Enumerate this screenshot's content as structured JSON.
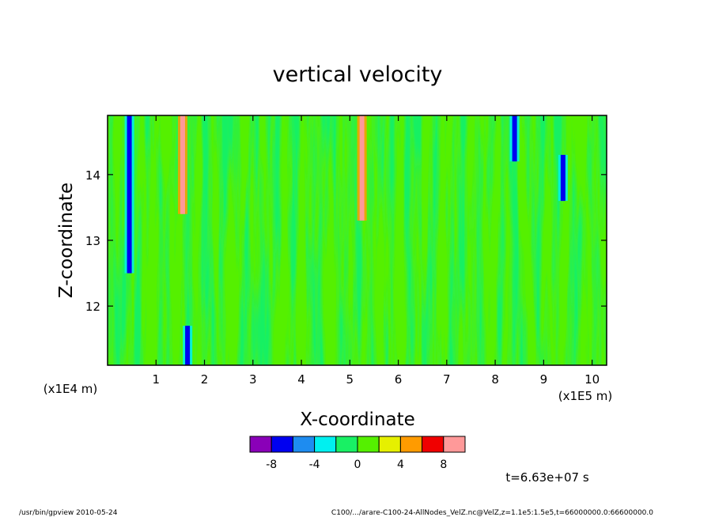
{
  "chart_data": {
    "type": "heatmap",
    "title": "vertical velocity",
    "xlabel": "X-coordinate",
    "ylabel": "Z-coordinate",
    "x_unit_label": "(x1E5 m)",
    "y_unit_label": "(x1E4 m)",
    "xlim": [
      0.0,
      10.3
    ],
    "ylim": [
      11.1,
      14.9
    ],
    "x_ticks": [
      1,
      2,
      3,
      4,
      5,
      6,
      7,
      8,
      9,
      10
    ],
    "y_ticks": [
      12,
      13,
      14
    ],
    "colorbar": {
      "levels": [
        -10,
        -8,
        -6,
        -4,
        -2,
        0,
        2,
        4,
        6,
        8,
        10
      ],
      "colors": [
        "#8a00b8",
        "#0000f0",
        "#1e8cf0",
        "#00f0f0",
        "#19f064",
        "#55f000",
        "#e6f000",
        "#ff9b00",
        "#f00000",
        "#ff9999"
      ],
      "tick_labels": [
        "-8",
        "-4",
        "0",
        "4",
        "8"
      ],
      "tick_values": [
        -8,
        -4,
        0,
        4,
        8
      ]
    },
    "dominant_value": 0,
    "features": [
      {
        "x": 0.45,
        "z_range": [
          12.5,
          14.9
        ],
        "value": -8
      },
      {
        "x": 1.55,
        "z_range": [
          13.4,
          14.9
        ],
        "value": 8
      },
      {
        "x": 1.65,
        "z_range": [
          11.1,
          11.7
        ],
        "value": -8
      },
      {
        "x": 5.25,
        "z_range": [
          13.3,
          14.9
        ],
        "value": 8
      },
      {
        "x": 8.4,
        "z_range": [
          14.2,
          14.9
        ],
        "value": -8
      },
      {
        "x": 9.4,
        "z_range": [
          13.6,
          14.3
        ],
        "value": -8
      }
    ],
    "annotation": "t=6.63e+07 s"
  },
  "footer": {
    "left": "/usr/bin/gpview   2010-05-24",
    "right": "C100/.../arare-C100-24-AllNodes_VelZ.nc@VelZ,z=1.1e5:1.5e5,t=66000000.0:66600000.0"
  }
}
